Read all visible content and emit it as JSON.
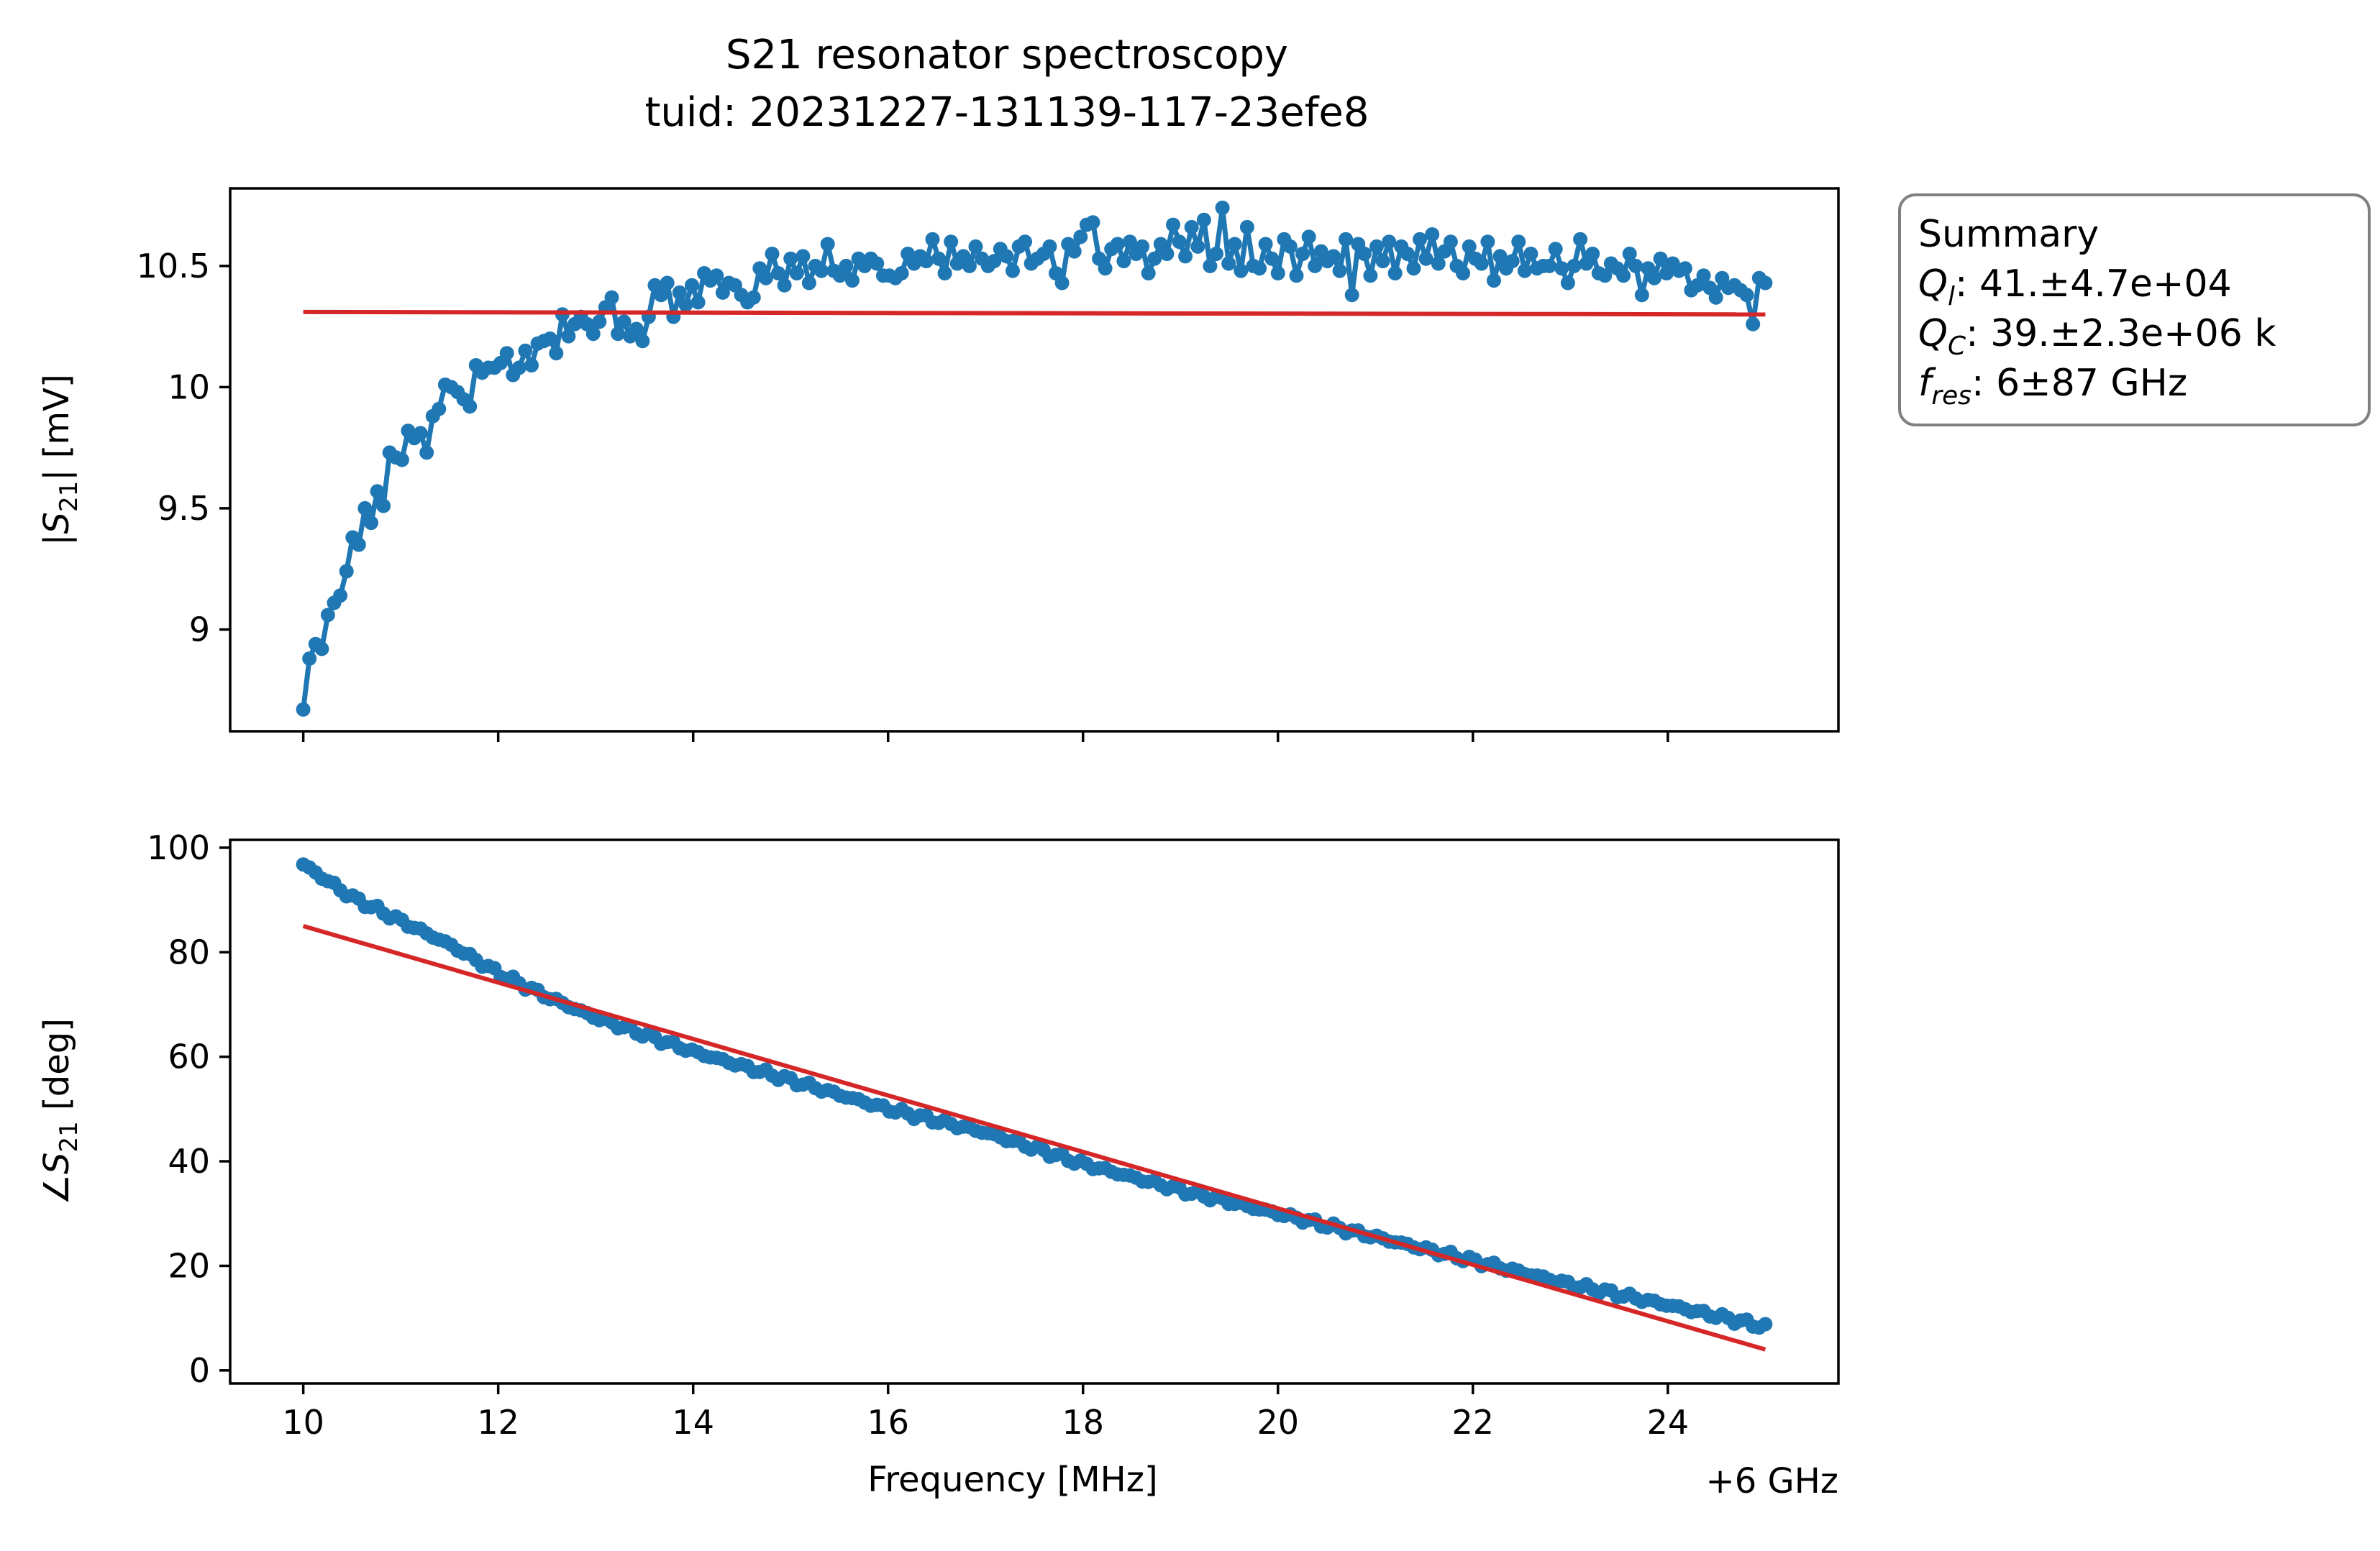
{
  "figure": {
    "title": "S21 resonator spectroscopy",
    "subtitle": "tuid: 20231227-131139-117-23efe8"
  },
  "summary": {
    "heading": "Summary",
    "lines": [
      {
        "sym": "Q",
        "sub": "l",
        "value": ": 41.±4.7e+04"
      },
      {
        "sym": "Q",
        "sub": "C",
        "value": ": 39.±2.3e+06 k"
      },
      {
        "sym": "f",
        "sub": "res",
        "value": ": 6±87 GHz"
      }
    ]
  },
  "colors": {
    "data": "#1f77b4",
    "fit": "#d62728",
    "axes": "#000000",
    "legend_border": "#808080"
  },
  "chart_data": [
    {
      "type": "line",
      "panel": "top",
      "ylabel_prefix": "|S",
      "ylabel_sub": "21",
      "ylabel_suffix": "| [mV]",
      "xlabel": "",
      "xlim": [
        9.25,
        25.75
      ],
      "ylim": [
        8.58,
        10.82
      ],
      "yticks": [
        9,
        9.5,
        10,
        10.5
      ],
      "ytick_labels": [
        "9",
        "9.5",
        "10",
        "10.5"
      ],
      "xticks": [
        10,
        12,
        14,
        16,
        18,
        20,
        22,
        24
      ],
      "xtick_labels": [],
      "grid": false,
      "series": [
        {
          "style": "line-markers",
          "x_start": 10,
          "x_end": 25,
          "values": [
            8.67,
            8.88,
            8.94,
            8.92,
            9.06,
            9.11,
            9.14,
            9.24,
            9.38,
            9.35,
            9.5,
            9.44,
            9.57,
            9.51,
            9.73,
            9.71,
            9.7,
            9.82,
            9.79,
            9.81,
            9.73,
            9.88,
            9.91,
            10.01,
            10.0,
            9.98,
            9.95,
            9.92,
            10.09,
            10.06,
            10.08,
            10.08,
            10.1,
            10.14,
            10.05,
            10.08,
            10.15,
            10.09,
            10.18,
            10.19,
            10.2,
            10.14,
            10.3,
            10.21,
            10.26,
            10.29,
            10.26,
            10.22,
            10.27,
            10.33,
            10.37,
            10.22,
            10.27,
            10.21,
            10.24,
            10.19,
            10.29,
            10.42,
            10.38,
            10.43,
            10.29,
            10.39,
            10.34,
            10.42,
            10.35,
            10.47,
            10.44,
            10.46,
            10.39,
            10.43,
            10.42,
            10.38,
            10.35,
            10.37,
            10.49,
            10.45,
            10.55,
            10.47,
            10.42,
            10.53,
            10.47,
            10.54,
            10.43,
            10.5,
            10.48,
            10.59,
            10.48,
            10.46,
            10.5,
            10.44,
            10.53,
            10.5,
            10.53,
            10.51,
            10.46,
            10.46,
            10.45,
            10.47,
            10.55,
            10.51,
            10.54,
            10.52,
            10.61,
            10.53,
            10.47,
            10.6,
            10.51,
            10.54,
            10.5,
            10.58,
            10.53,
            10.5,
            10.52,
            10.57,
            10.54,
            10.48,
            10.58,
            10.6,
            10.51,
            10.53,
            10.55,
            10.58,
            10.47,
            10.43,
            10.59,
            10.56,
            10.62,
            10.67,
            10.68,
            10.53,
            10.49,
            10.57,
            10.59,
            10.52,
            10.6,
            10.55,
            10.58,
            10.47,
            10.53,
            10.59,
            10.55,
            10.67,
            10.6,
            10.54,
            10.66,
            10.58,
            10.69,
            10.5,
            10.55,
            10.74,
            10.51,
            10.59,
            10.48,
            10.66,
            10.5,
            10.49,
            10.59,
            10.53,
            10.47,
            10.61,
            10.58,
            10.46,
            10.55,
            10.62,
            10.5,
            10.56,
            10.52,
            10.54,
            10.48,
            10.61,
            10.38,
            10.59,
            10.55,
            10.46,
            10.58,
            10.52,
            10.6,
            10.47,
            10.58,
            10.55,
            10.49,
            10.61,
            10.53,
            10.63,
            10.51,
            10.56,
            10.6,
            10.5,
            10.47,
            10.58,
            10.53,
            10.51,
            10.6,
            10.44,
            10.54,
            10.49,
            10.52,
            10.6,
            10.48,
            10.55,
            10.49,
            10.5,
            10.5,
            10.57,
            10.49,
            10.43,
            10.5,
            10.61,
            10.51,
            10.55,
            10.47,
            10.46,
            10.51,
            10.49,
            10.46,
            10.55,
            10.5,
            10.38,
            10.49,
            10.45,
            10.53,
            10.47,
            10.51,
            10.48,
            10.49,
            10.4,
            10.42,
            10.46,
            10.41,
            10.37,
            10.45,
            10.41,
            10.42,
            10.4,
            10.38,
            10.26,
            10.45,
            10.43
          ]
        },
        {
          "style": "line",
          "x": [
            10,
            25
          ],
          "y": [
            10.31,
            10.3
          ]
        }
      ]
    },
    {
      "type": "line",
      "panel": "bottom",
      "ylabel_prefix": "∠S",
      "ylabel_sub": "21",
      "ylabel_suffix": " [deg]",
      "xlabel": "Frequency [MHz]",
      "offset_label": "+6 GHz",
      "xlim": [
        9.25,
        25.75
      ],
      "ylim": [
        -2.5,
        101.5
      ],
      "yticks": [
        0,
        20,
        40,
        60,
        80,
        100
      ],
      "ytick_labels": [
        "0",
        "20",
        "40",
        "60",
        "80",
        "100"
      ],
      "xticks": [
        10,
        12,
        14,
        16,
        18,
        20,
        22,
        24
      ],
      "xtick_labels": [
        "10",
        "12",
        "14",
        "16",
        "18",
        "20",
        "22",
        "24"
      ],
      "grid": false,
      "series": [
        {
          "style": "line-markers",
          "x_start": 10,
          "x_end": 25,
          "keypoints": [
            [
              10,
              96.8
            ],
            [
              10.5,
              90.5
            ],
            [
              11,
              86
            ],
            [
              11.5,
              81.5
            ],
            [
              12,
              76
            ],
            [
              12.5,
              71.5
            ],
            [
              13,
              67.5
            ],
            [
              14,
              61
            ],
            [
              15,
              55.5
            ],
            [
              16,
              50
            ],
            [
              17,
              45.5
            ],
            [
              18,
              39.5
            ],
            [
              19,
              34.5
            ],
            [
              20,
              30
            ],
            [
              21,
              25.5
            ],
            [
              22,
              21
            ],
            [
              23,
              16.5
            ],
            [
              24,
              12.5
            ],
            [
              25,
              8.3
            ]
          ]
        },
        {
          "style": "line",
          "x": [
            10,
            25
          ],
          "y": [
            85,
            4
          ]
        }
      ]
    }
  ]
}
